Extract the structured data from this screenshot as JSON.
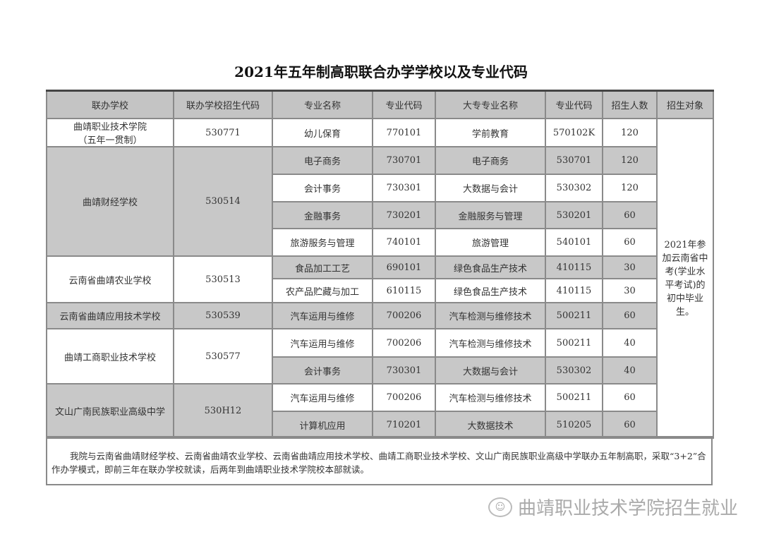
{
  "title": "2021年五年制高职联合办学学校以及专业代码",
  "headers": [
    "联办学校",
    "联办学校招生代码",
    "专业名称",
    "专业代码",
    "大专专业名称",
    "专业代码",
    "招生人数",
    "招生对象"
  ],
  "rows": [
    {
      "school": "曲靖职业技术学院",
      "school_sub": "（五年一贯制）",
      "code": "530771",
      "major": "幼儿保育",
      "major_code": "770101",
      "college_major": "学前教育",
      "college_code": "570102K",
      "count": "120"
    },
    {
      "school": "曲靖财经学校",
      "code": "530514",
      "major": "电子商务",
      "major_code": "730701",
      "college_major": "电子商务",
      "college_code": "530701",
      "count": "120"
    },
    {
      "major": "会计事务",
      "major_code": "730301",
      "college_major": "大数据与会计",
      "college_code": "530302",
      "count": "120"
    },
    {
      "major": "金融事务",
      "major_code": "730201",
      "college_major": "金融服务与管理",
      "college_code": "530201",
      "count": "60"
    },
    {
      "major": "旅游服务与管理",
      "major_code": "740101",
      "college_major": "旅游管理",
      "college_code": "540101",
      "count": "60"
    },
    {
      "school": "云南省曲靖农业学校",
      "code": "530513",
      "major": "食品加工工艺",
      "major_code": "690101",
      "college_major": "绿色食品生产技术",
      "college_code": "410115",
      "count": "30"
    },
    {
      "major": "农产品贮藏与加工",
      "major_code": "610115",
      "college_major": "绿色食品生产技术",
      "college_code": "410115",
      "count": "30"
    },
    {
      "school": "云南省曲靖应用技术学校",
      "code": "530539",
      "major": "汽车运用与维修",
      "major_code": "700206",
      "college_major": "汽车检测与维修技术",
      "college_code": "500211",
      "count": "60"
    },
    {
      "school": "曲靖工商职业技术学校",
      "code": "530577",
      "major": "汽车运用与维修",
      "major_code": "700206",
      "college_major": "汽车检测与维修技术",
      "college_code": "500211",
      "count": "40"
    },
    {
      "major": "会计事务",
      "major_code": "730301",
      "college_major": "大数据与会计",
      "college_code": "530302",
      "count": "40"
    },
    {
      "school": "文山广南民族职业高级中学",
      "code": "530H12",
      "major": "汽车运用与维修",
      "major_code": "700206",
      "college_major": "汽车检测与维修技术",
      "college_code": "500211",
      "count": "60"
    },
    {
      "major": "计算机应用",
      "major_code": "710201",
      "college_major": "大数据技术",
      "college_code": "510205",
      "count": "60"
    }
  ],
  "target": "2021年参加云南省中考(学业水平考试)的初中毕业生。",
  "note": "我院与云南省曲靖财经学校、云南省曲靖农业学校、云南省曲靖应用技术学校、曲靖工商职业技术学校、文山广南民族职业高级中学联办五年制高职，采取“3+2”合作办学模式，即前三年在联办学校就读，后两年到曲靖职业技术学院校本部就读。",
  "watermark": "曲靖职业技术学院招生就业"
}
